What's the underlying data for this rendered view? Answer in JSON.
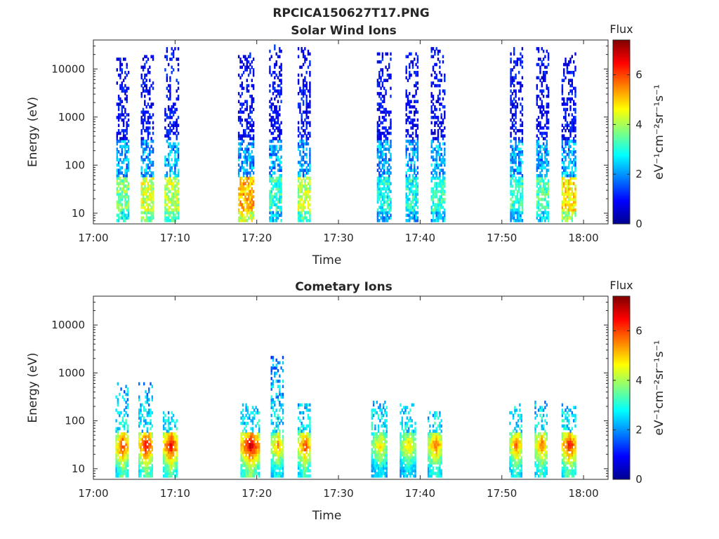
{
  "figure_title": "RPCICA150627T17.PNG",
  "colormap": [
    "#00008f",
    "#0000ff",
    "#00bfff",
    "#40ffbf",
    "#ffff00",
    "#ff8000",
    "#ff0000",
    "#800000"
  ],
  "chart_data": [
    {
      "type": "heatmap",
      "title": "Solar Wind Ions",
      "xlabel": "Time",
      "ylabel": "Energy (eV)",
      "xlim_minutes": [
        0,
        63
      ],
      "ylim": [
        6,
        40000
      ],
      "y_scale": "log",
      "x_ticks": [
        {
          "minute": 0,
          "label": "17:00"
        },
        {
          "minute": 10,
          "label": "17:10"
        },
        {
          "minute": 20,
          "label": "17:20"
        },
        {
          "minute": 30,
          "label": "17:30"
        },
        {
          "minute": 40,
          "label": "17:40"
        },
        {
          "minute": 50,
          "label": "17:50"
        },
        {
          "minute": 60,
          "label": "18:00"
        }
      ],
      "y_ticks": [
        {
          "value": 10,
          "label": "10"
        },
        {
          "value": 100,
          "label": "100"
        },
        {
          "value": 1000,
          "label": "1000"
        },
        {
          "value": 10000,
          "label": "10000"
        }
      ],
      "colorbar": {
        "title": "Flux",
        "unit": "eV⁻¹cm⁻²sr⁻¹s⁻¹",
        "range": [
          0,
          7.4
        ],
        "ticks": [
          "0",
          "2",
          "4",
          "6"
        ]
      },
      "bursts": [
        {
          "t": 3.6,
          "w": 1.6,
          "emax": 15000,
          "lowflux": 3.6
        },
        {
          "t": 6.6,
          "w": 1.6,
          "emax": 18000,
          "lowflux": 4.2
        },
        {
          "t": 9.6,
          "w": 1.8,
          "emax": 25000,
          "lowflux": 4.0
        },
        {
          "t": 18.7,
          "w": 2.0,
          "emax": 20000,
          "lowflux": 5.0
        },
        {
          "t": 22.3,
          "w": 1.6,
          "emax": 30000,
          "lowflux": 3.0
        },
        {
          "t": 25.8,
          "w": 1.6,
          "emax": 25000,
          "lowflux": 4.0
        },
        {
          "t": 35.6,
          "w": 1.8,
          "emax": 20000,
          "lowflux": 2.8
        },
        {
          "t": 39.0,
          "w": 1.6,
          "emax": 20000,
          "lowflux": 2.8
        },
        {
          "t": 42.2,
          "w": 1.8,
          "emax": 25000,
          "lowflux": 3.0
        },
        {
          "t": 51.8,
          "w": 1.6,
          "emax": 25000,
          "lowflux": 3.0
        },
        {
          "t": 55.0,
          "w": 1.6,
          "emax": 25000,
          "lowflux": 3.2
        },
        {
          "t": 58.2,
          "w": 1.8,
          "emax": 20000,
          "lowflux": 4.6
        }
      ]
    },
    {
      "type": "heatmap",
      "title": "Cometary Ions",
      "xlabel": "Time",
      "ylabel": "Energy (eV)",
      "xlim_minutes": [
        0,
        63
      ],
      "ylim": [
        6,
        40000
      ],
      "y_scale": "log",
      "x_ticks": [
        {
          "minute": 0,
          "label": "17:00"
        },
        {
          "minute": 10,
          "label": "17:10"
        },
        {
          "minute": 20,
          "label": "17:20"
        },
        {
          "minute": 30,
          "label": "17:30"
        },
        {
          "minute": 40,
          "label": "17:40"
        },
        {
          "minute": 50,
          "label": "17:50"
        },
        {
          "minute": 60,
          "label": "18:00"
        }
      ],
      "y_ticks": [
        {
          "value": 10,
          "label": "10"
        },
        {
          "value": 100,
          "label": "100"
        },
        {
          "value": 1000,
          "label": "1000"
        },
        {
          "value": 10000,
          "label": "10000"
        }
      ],
      "colorbar": {
        "title": "Flux",
        "unit": "eV⁻¹cm⁻²sr⁻¹s⁻¹",
        "range": [
          0,
          7.4
        ],
        "ticks": [
          "0",
          "2",
          "4",
          "6"
        ]
      },
      "bursts": [
        {
          "t": 3.5,
          "w": 1.6,
          "emax": 600,
          "peak": 6.5
        },
        {
          "t": 6.4,
          "w": 1.8,
          "emax": 700,
          "peak": 6.8
        },
        {
          "t": 9.4,
          "w": 1.8,
          "emax": 150,
          "peak": 6.8
        },
        {
          "t": 19.2,
          "w": 2.4,
          "emax": 200,
          "peak": 7.0
        },
        {
          "t": 22.5,
          "w": 1.6,
          "emax": 2000,
          "peak": 5.5
        },
        {
          "t": 25.8,
          "w": 1.6,
          "emax": 200,
          "peak": 6.2
        },
        {
          "t": 35.0,
          "w": 2.0,
          "emax": 250,
          "peak": 5.0
        },
        {
          "t": 38.5,
          "w": 2.0,
          "emax": 200,
          "peak": 5.0
        },
        {
          "t": 41.8,
          "w": 1.8,
          "emax": 150,
          "peak": 5.8
        },
        {
          "t": 51.7,
          "w": 1.6,
          "emax": 200,
          "peak": 5.8
        },
        {
          "t": 54.8,
          "w": 1.6,
          "emax": 250,
          "peak": 5.8
        },
        {
          "t": 58.2,
          "w": 1.8,
          "emax": 200,
          "peak": 6.6
        }
      ]
    }
  ]
}
